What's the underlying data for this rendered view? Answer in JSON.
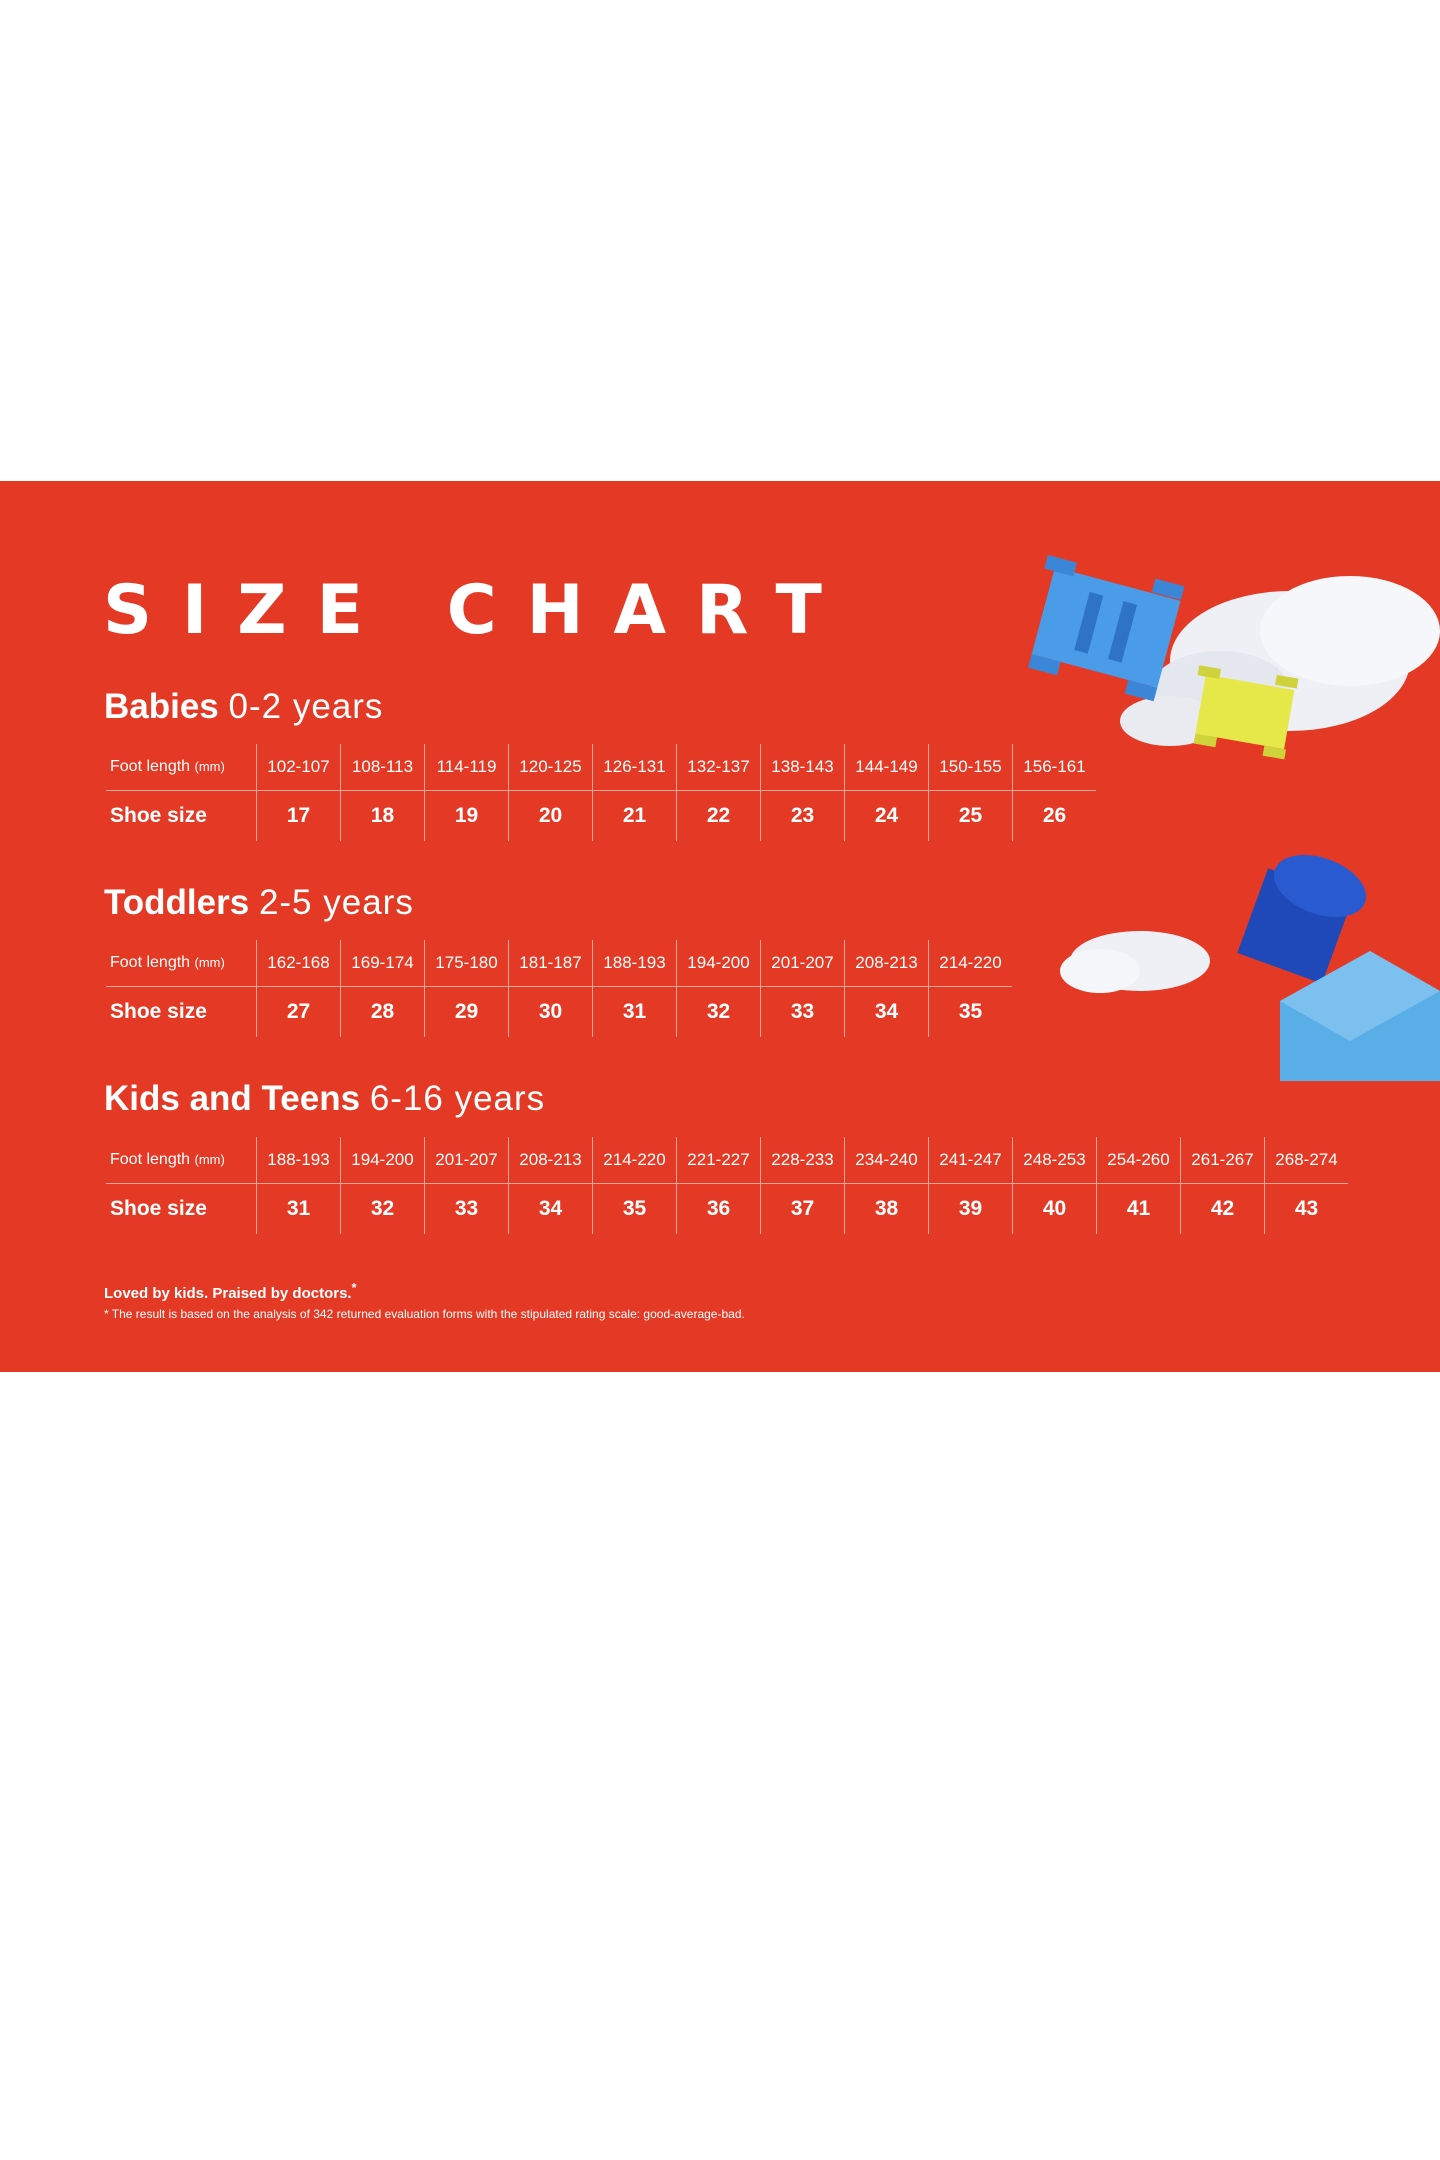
{
  "title": "SIZE CHART",
  "sections": [
    {
      "name": "Babies",
      "age": "0-2 years",
      "foot_label": "Foot length",
      "unit": "(mm)",
      "shoe_label": "Shoe size",
      "foot_lengths": [
        "102-107",
        "108-113",
        "114-119",
        "120-125",
        "126-131",
        "132-137",
        "138-143",
        "144-149",
        "150-155",
        "156-161"
      ],
      "shoe_sizes": [
        "17",
        "18",
        "19",
        "20",
        "21",
        "22",
        "23",
        "24",
        "25",
        "26"
      ]
    },
    {
      "name": "Toddlers",
      "age": "2-5 years",
      "foot_label": "Foot length",
      "unit": "(mm)",
      "shoe_label": "Shoe size",
      "foot_lengths": [
        "162-168",
        "169-174",
        "175-180",
        "181-187",
        "188-193",
        "194-200",
        "201-207",
        "208-213",
        "214-220"
      ],
      "shoe_sizes": [
        "27",
        "28",
        "29",
        "30",
        "31",
        "32",
        "33",
        "34",
        "35"
      ]
    },
    {
      "name": "Kids and Teens",
      "age": "6-16 years",
      "foot_label": "Foot length",
      "unit": "(mm)",
      "shoe_label": "Shoe size",
      "foot_lengths": [
        "188-193",
        "194-200",
        "201-207",
        "208-213",
        "214-220",
        "221-227",
        "228-233",
        "234-240",
        "241-247",
        "248-253",
        "254-260",
        "261-267",
        "268-274"
      ],
      "shoe_sizes": [
        "31",
        "32",
        "33",
        "34",
        "35",
        "36",
        "37",
        "38",
        "39",
        "40",
        "41",
        "42",
        "43"
      ]
    }
  ],
  "tagline": "Loved by kids. Praised by doctors.",
  "tagline_mark": "*",
  "footnote": "* The result is based on the analysis of 342 returned evaluation forms with the stipulated rating scale: good-average-bad.",
  "colors": {
    "background": "#e43a25",
    "text": "#ffffff",
    "block_blue": "#4a9be8",
    "block_yellow": "#e6e84a",
    "cylinder": "#1f49b8",
    "cube": "#5aaee8",
    "cloud": "#f2f3f7"
  }
}
